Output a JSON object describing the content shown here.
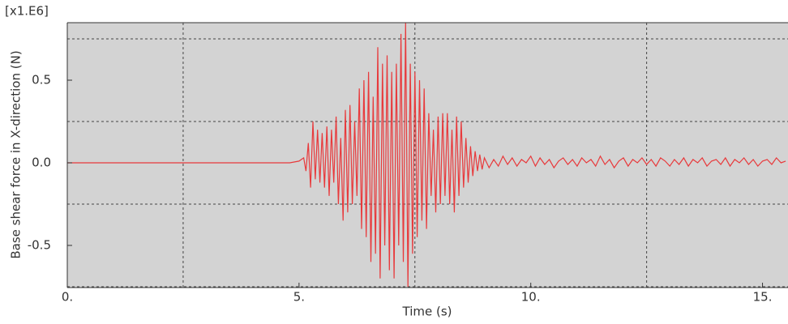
{
  "chart_data": {
    "type": "line",
    "x_label": "Time (s)",
    "y_label": "Base shear force in X-direction (N)",
    "y_multiplier": "[x1.E6]",
    "color": "#e8393b",
    "xlim": [
      0,
      15.55
    ],
    "ylim": [
      -0.755,
      0.848
    ],
    "xticks": [
      {
        "value": 0,
        "label": "0."
      },
      {
        "value": 5,
        "label": "5."
      },
      {
        "value": 10,
        "label": "10."
      },
      {
        "value": 15,
        "label": "15."
      }
    ],
    "yticks": [
      -0.5,
      {
        "value": 0,
        "label": "0.0"
      },
      0.5
    ],
    "xgrid": [
      2.5,
      7.5,
      12.5
    ],
    "ygrid": [
      -0.75,
      -0.25,
      0.25,
      0.75
    ],
    "x": [
      0,
      4.8,
      5.0,
      5.05,
      5.1,
      5.15,
      5.2,
      5.25,
      5.3,
      5.35,
      5.4,
      5.45,
      5.5,
      5.55,
      5.6,
      5.65,
      5.7,
      5.75,
      5.8,
      5.85,
      5.9,
      5.95,
      6.0,
      6.05,
      6.1,
      6.15,
      6.2,
      6.25,
      6.3,
      6.35,
      6.4,
      6.45,
      6.5,
      6.55,
      6.6,
      6.65,
      6.7,
      6.75,
      6.8,
      6.85,
      6.9,
      6.95,
      7.0,
      7.05,
      7.1,
      7.15,
      7.2,
      7.25,
      7.3,
      7.35,
      7.4,
      7.45,
      7.5,
      7.55,
      7.6,
      7.65,
      7.7,
      7.75,
      7.8,
      7.85,
      7.9,
      7.95,
      8.0,
      8.05,
      8.1,
      8.15,
      8.2,
      8.25,
      8.3,
      8.35,
      8.4,
      8.45,
      8.5,
      8.55,
      8.6,
      8.65,
      8.7,
      8.75,
      8.8,
      8.85,
      8.9,
      8.95,
      9.0,
      9.1,
      9.2,
      9.3,
      9.4,
      9.5,
      9.6,
      9.7,
      9.8,
      9.9,
      10.0,
      10.1,
      10.2,
      10.3,
      10.4,
      10.5,
      10.6,
      10.7,
      10.8,
      10.9,
      11.0,
      11.1,
      11.2,
      11.3,
      11.4,
      11.5,
      11.6,
      11.7,
      11.8,
      11.9,
      12.0,
      12.1,
      12.2,
      12.3,
      12.4,
      12.5,
      12.6,
      12.7,
      12.8,
      12.9,
      13.0,
      13.1,
      13.2,
      13.3,
      13.4,
      13.5,
      13.6,
      13.7,
      13.8,
      13.9,
      14.0,
      14.1,
      14.2,
      14.3,
      14.4,
      14.5,
      14.6,
      14.7,
      14.8,
      14.9,
      15.0,
      15.1,
      15.2,
      15.3,
      15.4,
      15.5
    ],
    "values": [
      0,
      0,
      0.01,
      0.02,
      0.03,
      -0.05,
      0.12,
      -0.15,
      0.25,
      -0.1,
      0.2,
      -0.12,
      0.18,
      -0.15,
      0.22,
      -0.2,
      0.2,
      -0.12,
      0.28,
      -0.25,
      0.15,
      -0.35,
      0.32,
      -0.3,
      0.35,
      -0.25,
      0.25,
      -0.2,
      0.45,
      -0.4,
      0.5,
      -0.45,
      0.55,
      -0.6,
      0.4,
      -0.55,
      0.7,
      -0.7,
      0.6,
      -0.5,
      0.65,
      -0.65,
      0.55,
      -0.7,
      0.6,
      -0.5,
      0.78,
      -0.6,
      0.85,
      -0.75,
      0.6,
      -0.55,
      0.55,
      -0.45,
      0.5,
      -0.35,
      0.45,
      -0.4,
      0.3,
      -0.2,
      0.2,
      -0.3,
      0.28,
      -0.25,
      0.3,
      -0.2,
      0.3,
      -0.25,
      0.2,
      -0.3,
      0.28,
      -0.2,
      0.25,
      -0.15,
      0.15,
      -0.12,
      0.1,
      -0.08,
      0.07,
      -0.05,
      0.05,
      -0.04,
      0.03,
      -0.03,
      0.02,
      -0.02,
      0.04,
      -0.01,
      0.03,
      -0.02,
      0.02,
      0.0,
      0.04,
      -0.02,
      0.03,
      -0.01,
      0.02,
      -0.03,
      0.01,
      0.03,
      -0.01,
      0.02,
      -0.02,
      0.03,
      0.0,
      0.02,
      -0.02,
      0.04,
      -0.01,
      0.02,
      -0.03,
      0.01,
      0.03,
      -0.02,
      0.02,
      0.0,
      0.03,
      -0.01,
      0.02,
      -0.02,
      0.03,
      0.01,
      -0.02,
      0.02,
      -0.01,
      0.03,
      -0.02,
      0.02,
      0.0,
      0.03,
      -0.02,
      0.01,
      0.02,
      -0.01,
      0.03,
      -0.02,
      0.02,
      0.0,
      0.03,
      -0.01,
      0.02,
      -0.02,
      0.01,
      0.02,
      -0.01,
      0.03,
      0.0,
      0.01
    ]
  }
}
